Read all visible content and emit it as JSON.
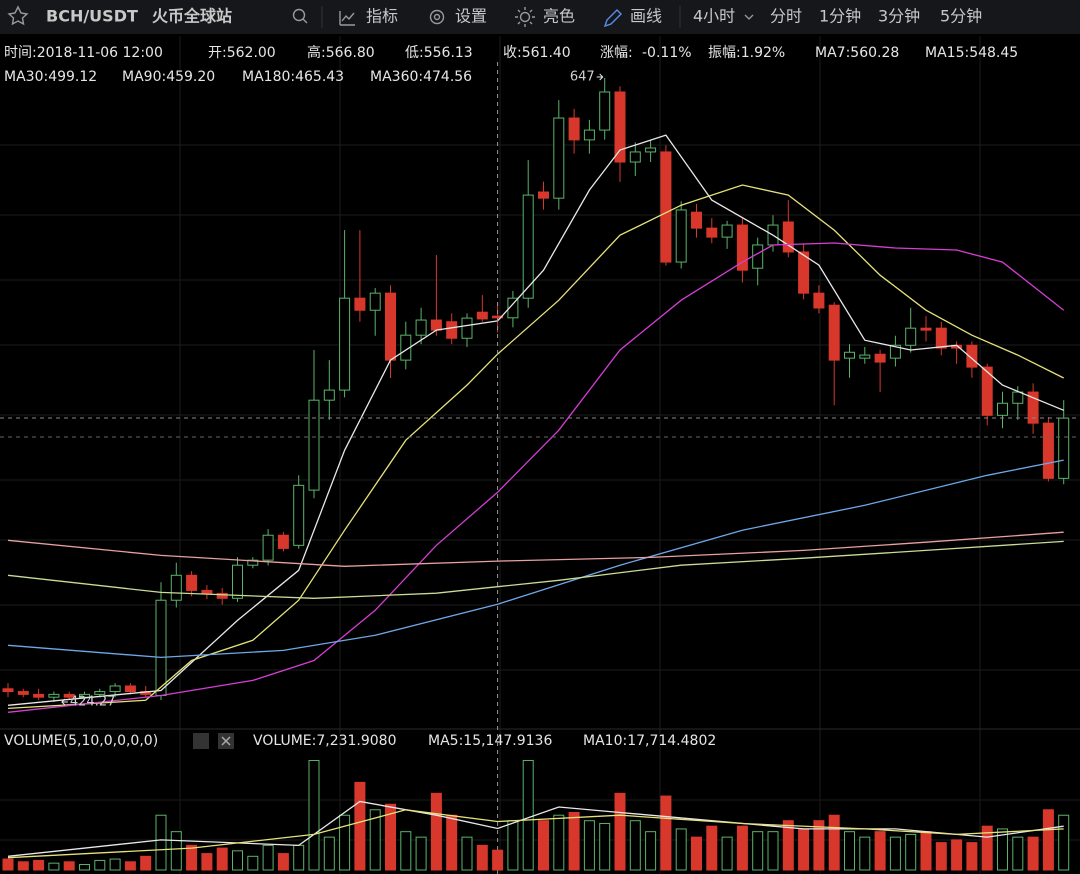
{
  "toolbar": {
    "pair": "BCH/USDT",
    "exchange": "火币全球站",
    "items": [
      "指标",
      "设置",
      "亮色",
      "画线"
    ],
    "interval": "4小时",
    "intervals": [
      "分时",
      "1分钟",
      "3分钟",
      "5分钟"
    ]
  },
  "info": {
    "row1": [
      {
        "text": "时间:2018-11-06 12:00"
      },
      {
        "text": "开:562.00"
      },
      {
        "text": "高:566.80"
      },
      {
        "text": "低:556.13"
      },
      {
        "text": "收:561.40"
      },
      {
        "text": "涨幅:"
      },
      {
        "text": "-0.11%",
        "color": "#e0463c"
      },
      {
        "text": "振幅:1.92%"
      },
      {
        "text": "MA7:560.28"
      },
      {
        "text": "MA15:548.45",
        "color": "#e6e27a"
      }
    ],
    "row2": [
      {
        "text": "MA30:499.12",
        "color": "#d43fd4"
      },
      {
        "text": "MA90:459.20",
        "color": "#6ea8e8"
      },
      {
        "text": "MA180:465.43",
        "color": "#c8dc96"
      },
      {
        "text": "MA360:474.56",
        "color": "#e8a0a0"
      }
    ],
    "volume": [
      {
        "text": "VOLUME(5,10,0,0,0,0)"
      },
      {
        "text": "VOLUME:7,231.9080"
      },
      {
        "text": "MA5:15,147.9136"
      },
      {
        "text": "MA10:17,714.4802",
        "color": "#e6e27a"
      }
    ]
  },
  "chart_data": [
    {
      "type": "candlestick",
      "up_color": "#5ab46a",
      "down_color": "#d8382c",
      "ylim": [
        415,
        652.7
      ],
      "max_label": "647",
      "min_label": "424.27",
      "open": [
        429,
        428,
        427,
        426,
        427,
        426,
        427,
        428,
        430,
        428,
        426.6,
        460.6,
        469.5,
        464.1,
        463,
        461.3,
        473.1,
        474.9,
        483.8,
        480.2,
        499.9,
        532,
        535.6,
        568.4,
        564.1,
        570.2,
        546.3,
        555.2,
        560.6,
        560,
        554.1,
        563.4,
        562.0,
        561.4,
        568.4,
        606.3,
        604.1,
        632.7,
        624.9,
        628.4,
        642,
        617,
        620.6,
        620.6,
        581.3,
        599.1,
        593.4,
        590.2,
        594.5,
        579.1,
        587.4,
        595.6,
        584.9,
        570.2,
        565.9,
        547,
        547,
        548.4,
        547,
        551.6,
        557.7,
        557.7,
        551.6,
        551.6,
        543.8,
        526.6,
        530.9,
        534.9,
        523.8,
        504.1
      ],
      "high": [
        431,
        429,
        429,
        428,
        428,
        428,
        429,
        431,
        431,
        430,
        467,
        474,
        471,
        466,
        465,
        476,
        476,
        486,
        485,
        505.2,
        549.9,
        546.3,
        592.7,
        592.7,
        572,
        573,
        560,
        565,
        583.8,
        563,
        563,
        569.5,
        566.8,
        571,
        617.7,
        610,
        639.1,
        636,
        632,
        647,
        644,
        624,
        625,
        623,
        603,
        602,
        597,
        596,
        597,
        590,
        598,
        603.4,
        588,
        573,
        567,
        552,
        551,
        550,
        555,
        565,
        562,
        560,
        553,
        553,
        545,
        535,
        537,
        538,
        526,
        532
      ],
      "low": [
        426,
        426,
        425,
        424.27,
        425,
        425,
        426,
        426,
        427,
        426,
        425,
        458,
        462,
        461,
        459,
        460,
        472,
        473,
        478,
        479,
        497,
        525,
        533,
        560,
        555,
        539.9,
        543,
        552,
        555,
        552,
        551,
        560,
        556.13,
        558,
        565,
        600,
        600,
        620,
        620,
        625,
        609.9,
        612,
        617,
        580,
        579,
        590,
        588,
        586,
        574,
        573,
        585,
        583,
        568,
        563,
        530.2,
        540,
        545,
        534.9,
        544,
        549,
        553,
        548,
        545,
        540,
        523,
        522,
        525,
        520,
        503,
        502
      ],
      "close": [
        428,
        427,
        426,
        427,
        426,
        427,
        428,
        430,
        428,
        427,
        460.6,
        469.5,
        464.1,
        463,
        461.3,
        473.1,
        474.9,
        483.8,
        479.1,
        501.6,
        532,
        535.6,
        568.4,
        564.1,
        570.2,
        546.3,
        555.2,
        560.6,
        557,
        554.1,
        561.3,
        561,
        561.4,
        568.4,
        605.2,
        604.1,
        632.7,
        624.9,
        628.4,
        642,
        617,
        620.6,
        622,
        581.3,
        599.9,
        593.4,
        590.2,
        594.5,
        578.4,
        587.4,
        594.5,
        584.9,
        570.2,
        564.9,
        546.3,
        549.1,
        548.1,
        545.6,
        551.6,
        557.7,
        557,
        550.6,
        550.6,
        543.8,
        526.6,
        530.9,
        534.9,
        523.8,
        504.1,
        525.6
      ],
      "ma_series": [
        {
          "color": "#e8e8e8",
          "x": [
            0,
            10,
            15,
            19,
            22,
            25,
            28,
            32,
            35,
            38,
            40,
            43,
            46,
            50,
            53,
            56,
            59,
            62,
            65,
            69
          ],
          "values": [
            423.1,
            428.4,
            453.4,
            471.3,
            514.1,
            546.3,
            557,
            560.28,
            578.4,
            607,
            621.3,
            626.6,
            603.4,
            590.9,
            580.2,
            553.4,
            549.9,
            551.6,
            537.4,
            528.4
          ]
        },
        {
          "color": "#e6e27a",
          "x": [
            0,
            9,
            12,
            16,
            19,
            22,
            26,
            30,
            32,
            36,
            40,
            44,
            48,
            51,
            54,
            57,
            60,
            63,
            66,
            69
          ],
          "values": [
            422,
            424.9,
            439.1,
            446.3,
            460.6,
            485.6,
            517.7,
            537.4,
            548.45,
            567.7,
            590.9,
            601.6,
            608.8,
            605.2,
            592.7,
            576.6,
            564.1,
            555.2,
            548.1,
            539.9
          ]
        },
        {
          "color": "#d43fd4",
          "x": [
            0,
            10,
            16,
            20,
            24,
            28,
            32,
            36,
            40,
            44,
            48,
            50,
            54,
            58,
            62,
            65,
            69
          ],
          "values": [
            420.6,
            426.6,
            432,
            439.1,
            457,
            480.2,
            499.12,
            521.3,
            549.9,
            567.7,
            581.3,
            587.4,
            588.1,
            586.3,
            585.6,
            581.3,
            564.1
          ]
        },
        {
          "color": "#6ea8e8",
          "x": [
            0,
            10,
            18,
            24,
            32,
            40,
            48,
            56,
            64,
            69
          ],
          "values": [
            444.5,
            440.2,
            442.7,
            448.1,
            459.2,
            473.1,
            485.6,
            494.5,
            505.2,
            510.6
          ]
        },
        {
          "color": "#c8dc96",
          "x": [
            0,
            10,
            20,
            28,
            32,
            36,
            44,
            52,
            60,
            69
          ],
          "values": [
            469.5,
            463.4,
            461.3,
            463.1,
            465.43,
            467.7,
            473.1,
            475.6,
            478.4,
            481.6
          ]
        },
        {
          "color": "#e8a0a0",
          "x": [
            0,
            10,
            22,
            32,
            42,
            52,
            60,
            69
          ],
          "values": [
            482,
            476.6,
            472.7,
            474.56,
            475.9,
            478.4,
            481.3,
            484.9
          ]
        }
      ]
    },
    {
      "type": "bar",
      "ylim": [
        0,
        42000
      ],
      "values": [
        4000,
        3000,
        3500,
        2500,
        3000,
        2000,
        3500,
        4000,
        3000,
        5000,
        20000,
        14000,
        9000,
        6000,
        8000,
        7000,
        5000,
        9000,
        6000,
        9000,
        40000,
        12000,
        20000,
        32000,
        22000,
        24000,
        14000,
        12000,
        28000,
        20000,
        12000,
        9000,
        7231.908,
        18000,
        40000,
        18000,
        20000,
        21000,
        18000,
        17000,
        28000,
        18000,
        14000,
        27000,
        15000,
        12000,
        16000,
        12000,
        16000,
        14000,
        14000,
        18000,
        15000,
        18000,
        20000,
        14000,
        12000,
        14000,
        12000,
        13000,
        14000,
        10000,
        11000,
        10000,
        16000,
        15000,
        12000,
        12000,
        22000,
        20000
      ],
      "ma_series": [
        {
          "color": "#e8e8e8",
          "x": [
            0,
            10,
            19,
            23,
            28,
            32,
            36,
            40,
            46,
            52,
            58,
            64,
            69
          ],
          "values": [
            5000,
            11000,
            9000,
            25000,
            20000,
            15147.9136,
            23000,
            21000,
            18000,
            15000,
            15000,
            12000,
            16000
          ]
        },
        {
          "color": "#e6e27a",
          "x": [
            0,
            12,
            20,
            26,
            32,
            40,
            48,
            56,
            62,
            69
          ],
          "values": [
            4500,
            8000,
            13000,
            22000,
            17714.4802,
            20000,
            17000,
            15000,
            13000,
            15000
          ]
        }
      ]
    }
  ]
}
